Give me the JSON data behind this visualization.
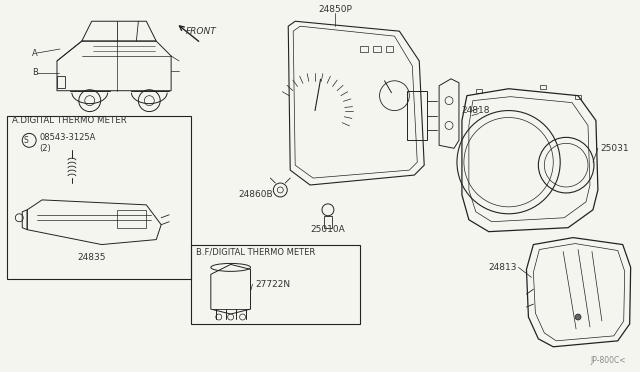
{
  "bg_color": "#f5f5f0",
  "line_color": "#222222",
  "label_color": "#333333",
  "fig_width": 6.4,
  "fig_height": 3.72,
  "dpi": 100,
  "watermark": "JP-800C<",
  "box_A_label": "A.DIGITAL THERMO METER",
  "box_B_label": "B.F/DIGITAL THERMO METER",
  "part_24850P": "24850P",
  "part_24818": "24818",
  "part_25031": "25031",
  "part_24860B": "24860B",
  "part_25010A": "25010A",
  "part_24813": "24813",
  "part_24835": "24835",
  "part_27722N": "27722N",
  "part_08543": "08543-3125A",
  "part_08543_qty": "(2)",
  "front_label": "FRONT"
}
